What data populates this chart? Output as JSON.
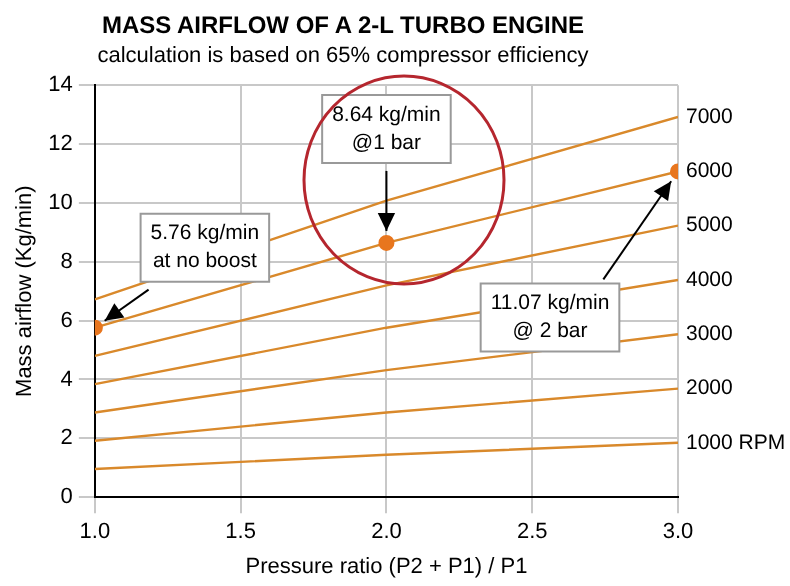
{
  "chart_data": {
    "type": "line",
    "title": "MASS AIRFLOW OF A 2-L TURBO ENGINE",
    "subtitle": "calculation is based on 65% compressor efficiency",
    "xlabel": "Pressure ratio (P2 + P1) / P1",
    "ylabel": "Mass airflow (Kg/min)",
    "x": [
      1,
      2,
      3
    ],
    "series": [
      {
        "name": "7000",
        "color": "#d9892b",
        "values": [
          6.72,
          10.08,
          12.92
        ]
      },
      {
        "name": "6000",
        "color": "#d9892b",
        "values": [
          5.76,
          8.64,
          11.07
        ]
      },
      {
        "name": "5000",
        "color": "#d9892b",
        "values": [
          4.8,
          7.2,
          9.23
        ]
      },
      {
        "name": "4000",
        "color": "#d9892b",
        "values": [
          3.84,
          5.76,
          7.38
        ]
      },
      {
        "name": "3000",
        "color": "#d9892b",
        "values": [
          2.88,
          4.32,
          5.54
        ]
      },
      {
        "name": "2000",
        "color": "#d9892b",
        "values": [
          1.92,
          2.88,
          3.69
        ]
      },
      {
        "name": "1000 RPM",
        "color": "#d9892b",
        "values": [
          0.96,
          1.44,
          1.85
        ]
      },
      {
        "type": "scatter",
        "color": "#e8761e",
        "marker": "circle",
        "values": [
          5.76,
          8.64,
          11.07
        ]
      }
    ],
    "xlim": [
      1,
      3
    ],
    "xticks": [
      {
        "value": 1,
        "label": "1.0"
      },
      {
        "value": 1.5,
        "label": "1.5"
      },
      {
        "value": 2,
        "label": "2.0"
      },
      {
        "value": 2.5,
        "label": "2.5"
      },
      {
        "value": 3,
        "label": "3.0"
      }
    ],
    "ylim": [
      0,
      14
    ],
    "yticks": [
      0,
      2,
      4,
      6,
      8,
      10,
      12,
      14
    ],
    "grid": true,
    "legend": false,
    "marker": "none",
    "annotations": [
      {
        "text": "5.76 kg/min\nat no boost",
        "x": 1,
        "y": 5.76
      },
      {
        "text": "8.64 kg/min\n@1 bar",
        "x": 2,
        "y": 8.64
      },
      {
        "text": "11.07 kg/min\n@ 2 bar",
        "x": 3,
        "y": 11.07
      }
    ]
  }
}
